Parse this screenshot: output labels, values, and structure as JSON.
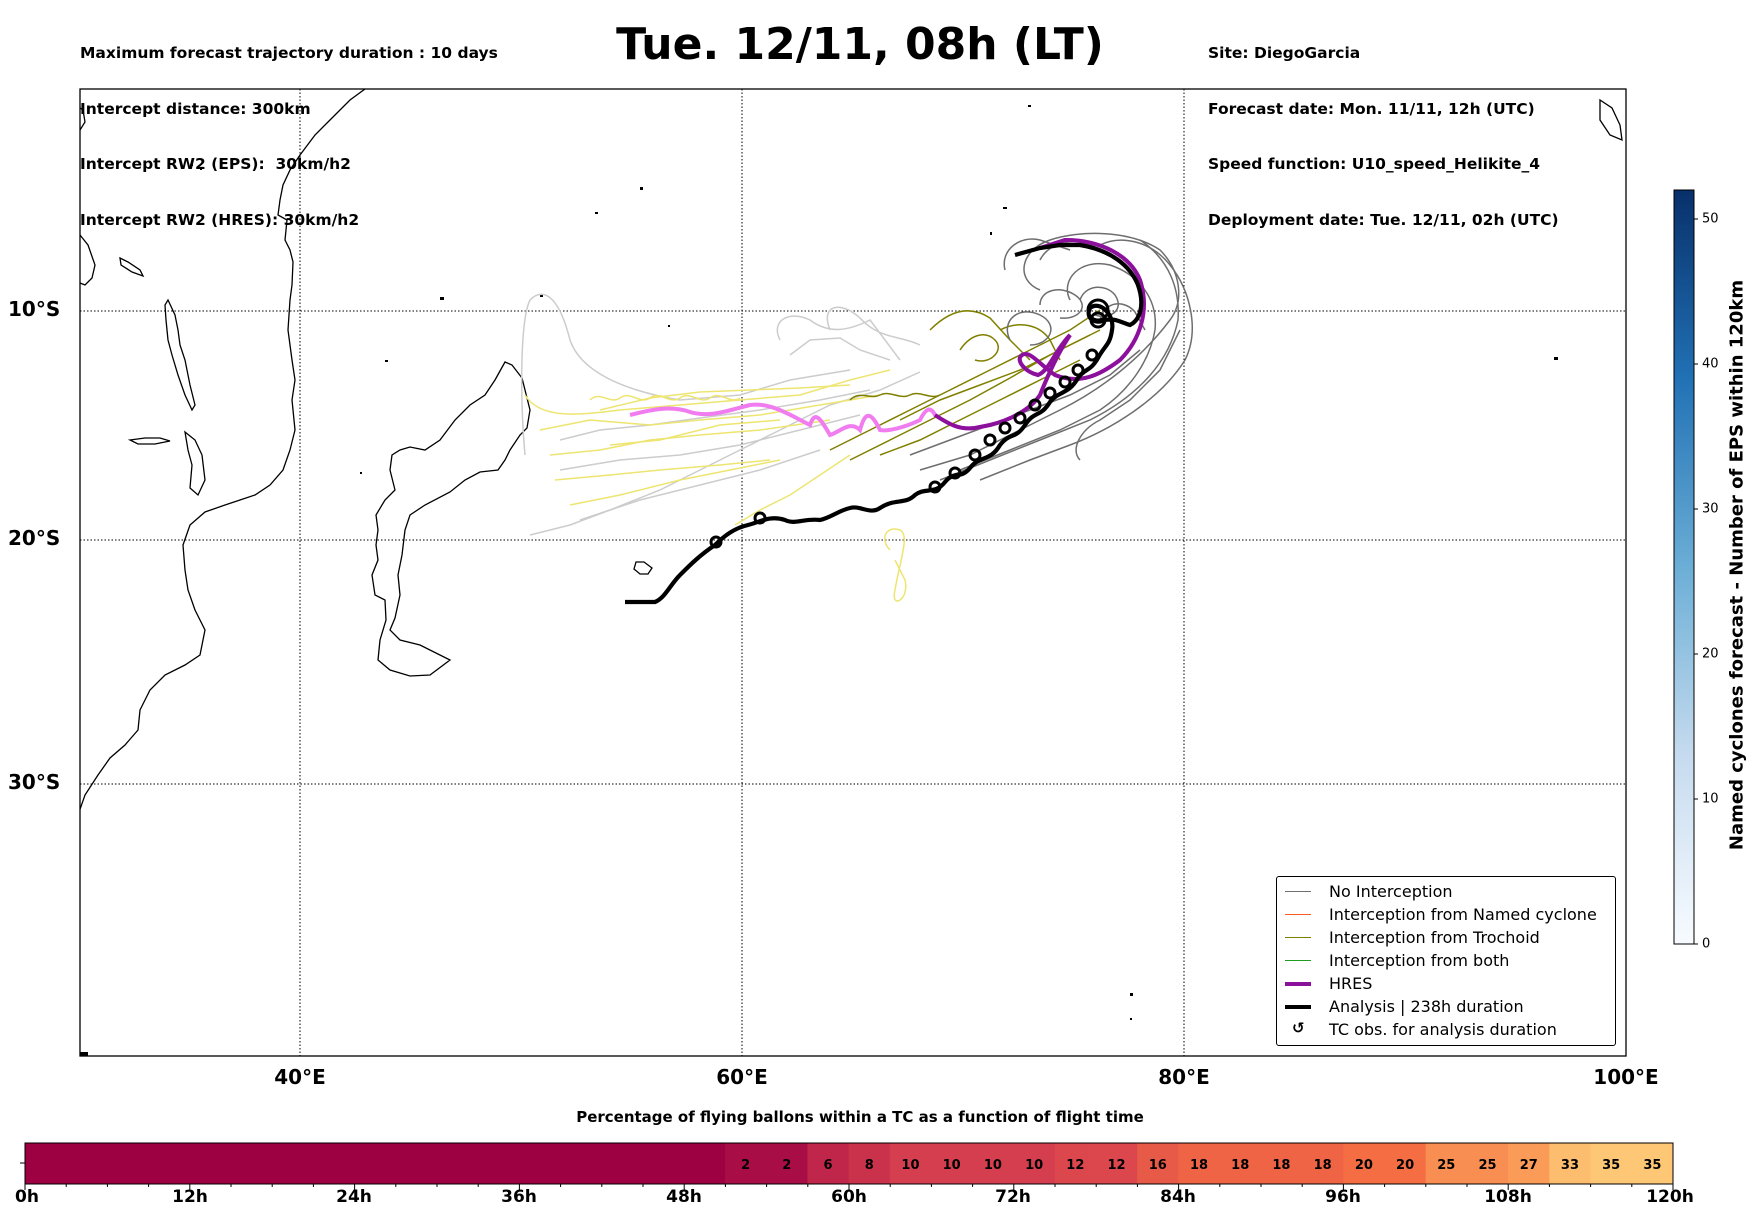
{
  "header": {
    "left_lines": [
      "Maximum forecast trajectory duration : 10 days",
      "Intercept distance: 300km",
      "Intercept RW2 (EPS):  30km/h2",
      "Intercept RW2 (HRES): 30km/h2"
    ],
    "title": "Tue. 12/11, 08h (LT)",
    "right_lines": [
      "Site: DiegoGarcia",
      "Forecast date: Mon. 11/11, 12h (UTC)",
      "Speed function: U10_speed_Helikite_4",
      "Deployment date: Tue. 12/11, 02h (UTC)"
    ]
  },
  "map": {
    "lat_labels": [
      "10°S",
      "20°S",
      "30°S"
    ],
    "lon_labels": [
      "40°E",
      "60°E",
      "80°E",
      "100°E"
    ]
  },
  "legend": {
    "items": [
      {
        "label": "No Interception",
        "color": "#707070"
      },
      {
        "label": "Interception from Named cyclone",
        "color": "#ff5a1f"
      },
      {
        "label": "Interception from Trochoid",
        "color": "#808000"
      },
      {
        "label": "Interception from both",
        "color": "#1e9c1e"
      },
      {
        "label": "HRES",
        "color": "#8b109c"
      },
      {
        "label": "Analysis | 238h duration",
        "color": "#000000"
      },
      {
        "label": "TC obs. for analysis duration",
        "icon": "tc-observation-icon"
      }
    ]
  },
  "colorbar_eps": {
    "label": "Named cyclones forecast - Number of EPS within 120km",
    "ticks": [
      "0",
      "10",
      "20",
      "30",
      "40",
      "50"
    ],
    "range": [
      0,
      52
    ],
    "colormap": "Blues"
  },
  "percentage_bar": {
    "title": "Percentage of flying ballons within a TC as a function of flight time",
    "time_labels": [
      "0h",
      "12h",
      "24h",
      "36h",
      "48h",
      "60h",
      "72h",
      "84h",
      "96h",
      "108h",
      "120h"
    ],
    "cells": [
      "2",
      "2",
      "6",
      "8",
      "10",
      "10",
      "10",
      "10",
      "12",
      "12",
      "16",
      "18",
      "18",
      "18",
      "18",
      "20",
      "20",
      "25",
      "25",
      "27",
      "33",
      "35",
      "35"
    ],
    "colormap": "Spectral"
  }
}
